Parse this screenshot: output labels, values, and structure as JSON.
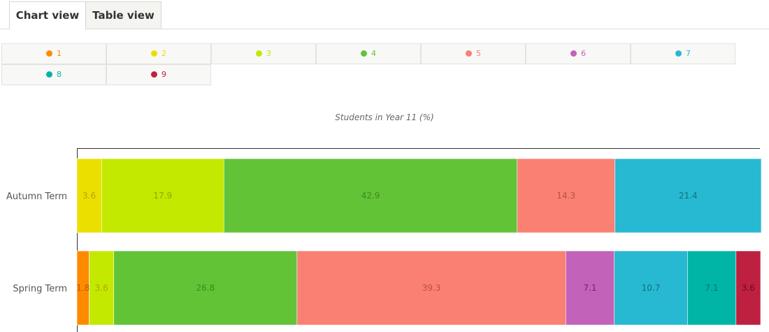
{
  "tabs": [
    {
      "label": "Chart view",
      "active": true
    },
    {
      "label": "Table view",
      "active": false
    }
  ],
  "chart_data": {
    "type": "bar",
    "orientation": "horizontal",
    "stacked": true,
    "title": "Students in Year 11 (%)",
    "categories": [
      "Autumn Term",
      "Spring Term"
    ],
    "xlim": [
      0,
      100
    ],
    "grid": false,
    "legend_position": "top",
    "series": [
      {
        "name": "1",
        "color": "#ff8a00",
        "text_color": "#b35a00",
        "values": [
          0,
          1.8
        ]
      },
      {
        "name": "2",
        "color": "#ebdf00",
        "text_color": "#b0a600",
        "values": [
          3.6,
          3.6
        ]
      },
      {
        "name": "3",
        "color": "#c3e900",
        "text_color": "#8aa800",
        "values": [
          17.9,
          0
        ]
      },
      {
        "name": "4",
        "color": "#62c337",
        "text_color": "#3d8a1c",
        "values": [
          42.9,
          26.8
        ]
      },
      {
        "name": "5",
        "color": "#f98072",
        "text_color": "#b85246",
        "values": [
          14.3,
          39.3
        ]
      },
      {
        "name": "6",
        "color": "#c262b8",
        "text_color": "#7a1f72",
        "values": [
          0,
          7.1
        ]
      },
      {
        "name": "7",
        "color": "#26b9d1",
        "text_color": "#156f80",
        "values": [
          21.4,
          10.7
        ]
      },
      {
        "name": "8",
        "color": "#00b5a5",
        "text_color": "#00756b",
        "values": [
          0,
          7.1
        ]
      },
      {
        "name": "9",
        "color": "#be2040",
        "text_color": "#6e0d20",
        "values": [
          0,
          3.6
        ]
      }
    ],
    "segment_overrides": {
      "Spring Term": {
        "2": "#c3e900"
      }
    }
  }
}
